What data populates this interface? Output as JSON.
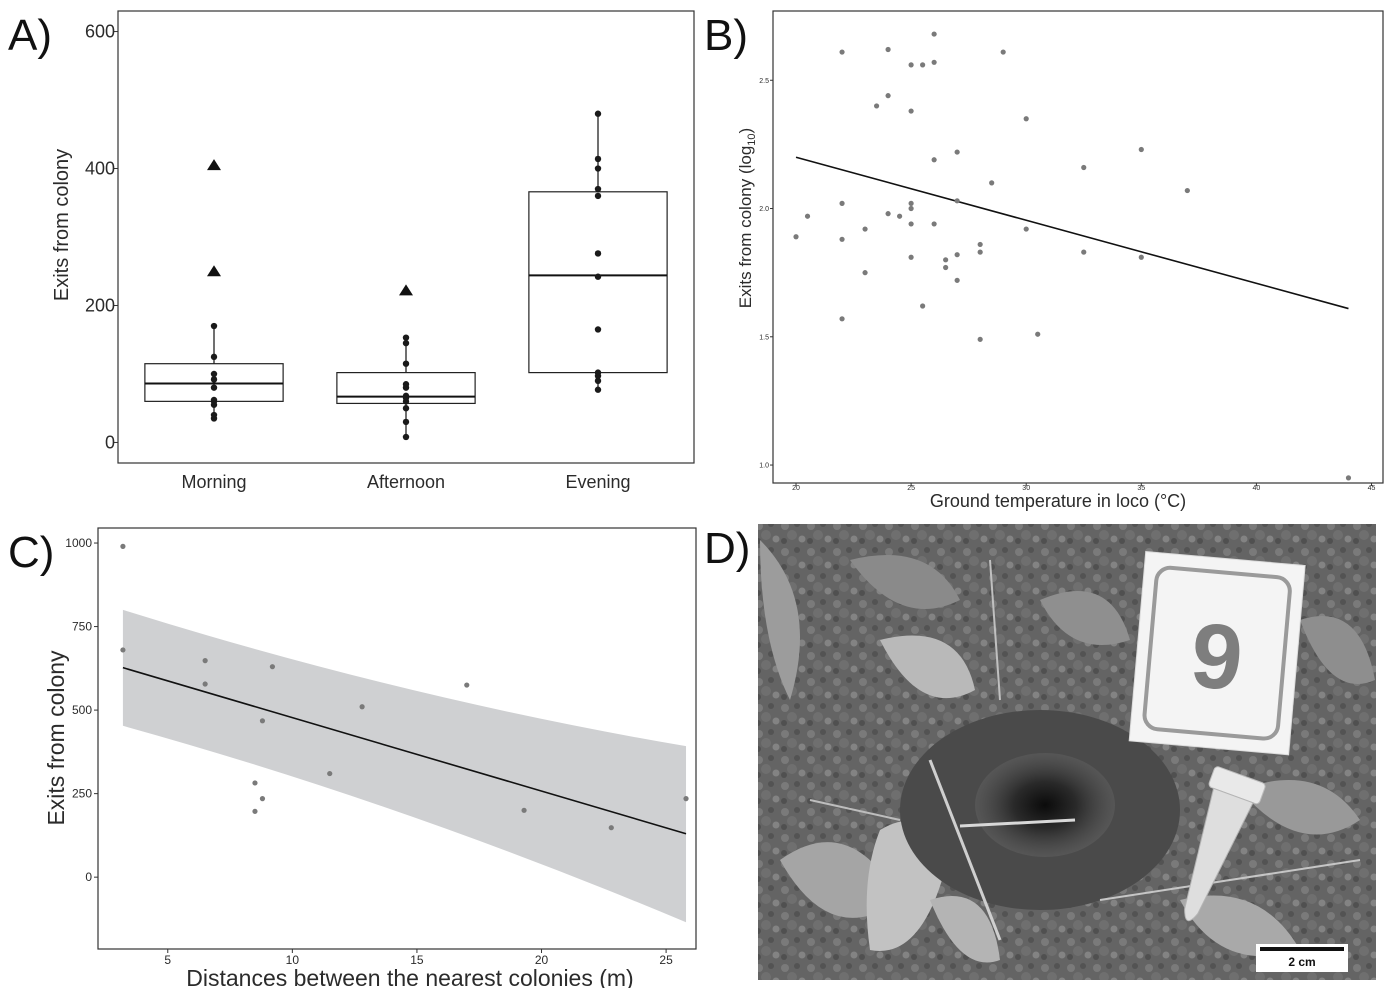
{
  "panel_labels": [
    "A)",
    "B)",
    "C)",
    "D)"
  ],
  "chart_data": [
    {
      "panel": "A)",
      "type": "box",
      "ylabel": "Exits from colony",
      "xlabel": "",
      "categories": [
        "Morning",
        "Afternoon",
        "Evening"
      ],
      "ylim": [
        -30,
        630
      ],
      "yticks": [
        0,
        200,
        400,
        600
      ],
      "ytick_labels": [
        "0",
        "200",
        "400",
        "600"
      ],
      "grid": false,
      "boxes": [
        {
          "category": "Morning",
          "q1": 60,
          "median": 86,
          "q3": 115,
          "whisker_low": 35,
          "whisker_high": 170,
          "points": [
            35,
            40,
            55,
            60,
            62,
            80,
            92,
            100,
            125,
            170
          ],
          "outliers": [
            250,
            405
          ]
        },
        {
          "category": "Afternoon",
          "q1": 57,
          "median": 67,
          "q3": 102,
          "whisker_low": 8,
          "whisker_high": 153,
          "points": [
            8,
            30,
            50,
            60,
            65,
            68,
            80,
            85,
            115,
            145,
            153
          ],
          "outliers": [
            222
          ]
        },
        {
          "category": "Evening",
          "q1": 102,
          "median": 244,
          "q3": 366,
          "whisker_low": 77,
          "whisker_high": 480,
          "points": [
            77,
            90,
            97,
            102,
            165,
            242,
            276,
            360,
            370,
            400,
            414,
            480
          ],
          "outliers": []
        }
      ]
    },
    {
      "panel": "B)",
      "type": "scatter",
      "ylabel_main": "Exits from colony (log",
      "ylabel_sub": "10",
      "ylabel_close": ")",
      "xlabel": "Ground temperature in loco (°C)",
      "xlim": [
        19,
        45.5
      ],
      "ylim": [
        0.93,
        2.77
      ],
      "xticks": [
        20,
        25,
        30,
        35,
        40,
        45
      ],
      "xtick_labels": [
        "20",
        "25",
        "30",
        "35",
        "40",
        "45"
      ],
      "yticks": [
        1.0,
        1.5,
        2.0,
        2.5
      ],
      "ytick_labels": [
        "1.0",
        "1.5",
        "2.0",
        "2.5"
      ],
      "grid": false,
      "points": [
        [
          20,
          1.89
        ],
        [
          20.5,
          1.97
        ],
        [
          22,
          2.61
        ],
        [
          22,
          2.02
        ],
        [
          22,
          1.88
        ],
        [
          22,
          1.57
        ],
        [
          23,
          1.92
        ],
        [
          23,
          1.75
        ],
        [
          23.5,
          2.4
        ],
        [
          24,
          2.62
        ],
        [
          24,
          2.44
        ],
        [
          24,
          1.98
        ],
        [
          24.5,
          1.97
        ],
        [
          25,
          2.56
        ],
        [
          25,
          2.38
        ],
        [
          25,
          2.02
        ],
        [
          25,
          2.0
        ],
        [
          25,
          1.94
        ],
        [
          25,
          1.81
        ],
        [
          25.5,
          2.56
        ],
        [
          25.5,
          1.62
        ],
        [
          26,
          2.68
        ],
        [
          26,
          2.57
        ],
        [
          26,
          2.19
        ],
        [
          26,
          1.94
        ],
        [
          26.5,
          1.8
        ],
        [
          26.5,
          1.77
        ],
        [
          27,
          2.22
        ],
        [
          27,
          2.03
        ],
        [
          27,
          1.82
        ],
        [
          27,
          1.72
        ],
        [
          28,
          1.86
        ],
        [
          28,
          1.83
        ],
        [
          28,
          1.49
        ],
        [
          28.5,
          2.1
        ],
        [
          29,
          2.61
        ],
        [
          30,
          2.35
        ],
        [
          30,
          1.92
        ],
        [
          30.5,
          1.51
        ],
        [
          32.5,
          2.16
        ],
        [
          32.5,
          1.83
        ],
        [
          35,
          2.23
        ],
        [
          35,
          1.81
        ],
        [
          37,
          2.07
        ],
        [
          44,
          0.95
        ]
      ],
      "trend_line": {
        "x": [
          20,
          44
        ],
        "y": [
          2.2,
          1.61
        ]
      }
    },
    {
      "panel": "C)",
      "type": "scatter",
      "ylabel": "Exits from colony",
      "xlabel": "Distances between the nearest colonies (m)",
      "xlim": [
        2.2,
        26.2
      ],
      "ylim": [
        -215,
        1045
      ],
      "xticks": [
        5,
        10,
        15,
        20,
        25
      ],
      "xtick_labels": [
        "5",
        "10",
        "15",
        "20",
        "25"
      ],
      "yticks": [
        0,
        250,
        500,
        750,
        1000
      ],
      "ytick_labels": [
        "0",
        "250",
        "500",
        "750",
        "1000"
      ],
      "grid": false,
      "points": [
        [
          3.2,
          990
        ],
        [
          3.2,
          680
        ],
        [
          6.5,
          648
        ],
        [
          6.5,
          578
        ],
        [
          8.5,
          282
        ],
        [
          8.5,
          197
        ],
        [
          8.8,
          468
        ],
        [
          8.8,
          235
        ],
        [
          9.2,
          630
        ],
        [
          11.5,
          310
        ],
        [
          12.8,
          510
        ],
        [
          17,
          575
        ],
        [
          19.3,
          200
        ],
        [
          22.8,
          148
        ],
        [
          25.8,
          235
        ]
      ],
      "trend_line": {
        "x": [
          3.2,
          25.8
        ],
        "y": [
          627,
          130
        ]
      },
      "confidence_band": {
        "x": [
          3.2,
          25.8
        ],
        "upper": [
          800,
          392
        ],
        "lower": [
          453,
          -135
        ]
      }
    }
  ],
  "photo": {
    "panel": "D)",
    "marker_number": "9",
    "scale_bar_label": "2 cm"
  },
  "colors": {
    "axis": "#333333",
    "point": "#7a7a7a",
    "box_point": "#1a1a1a",
    "band": "#cfd0d2",
    "line": "#111111"
  }
}
